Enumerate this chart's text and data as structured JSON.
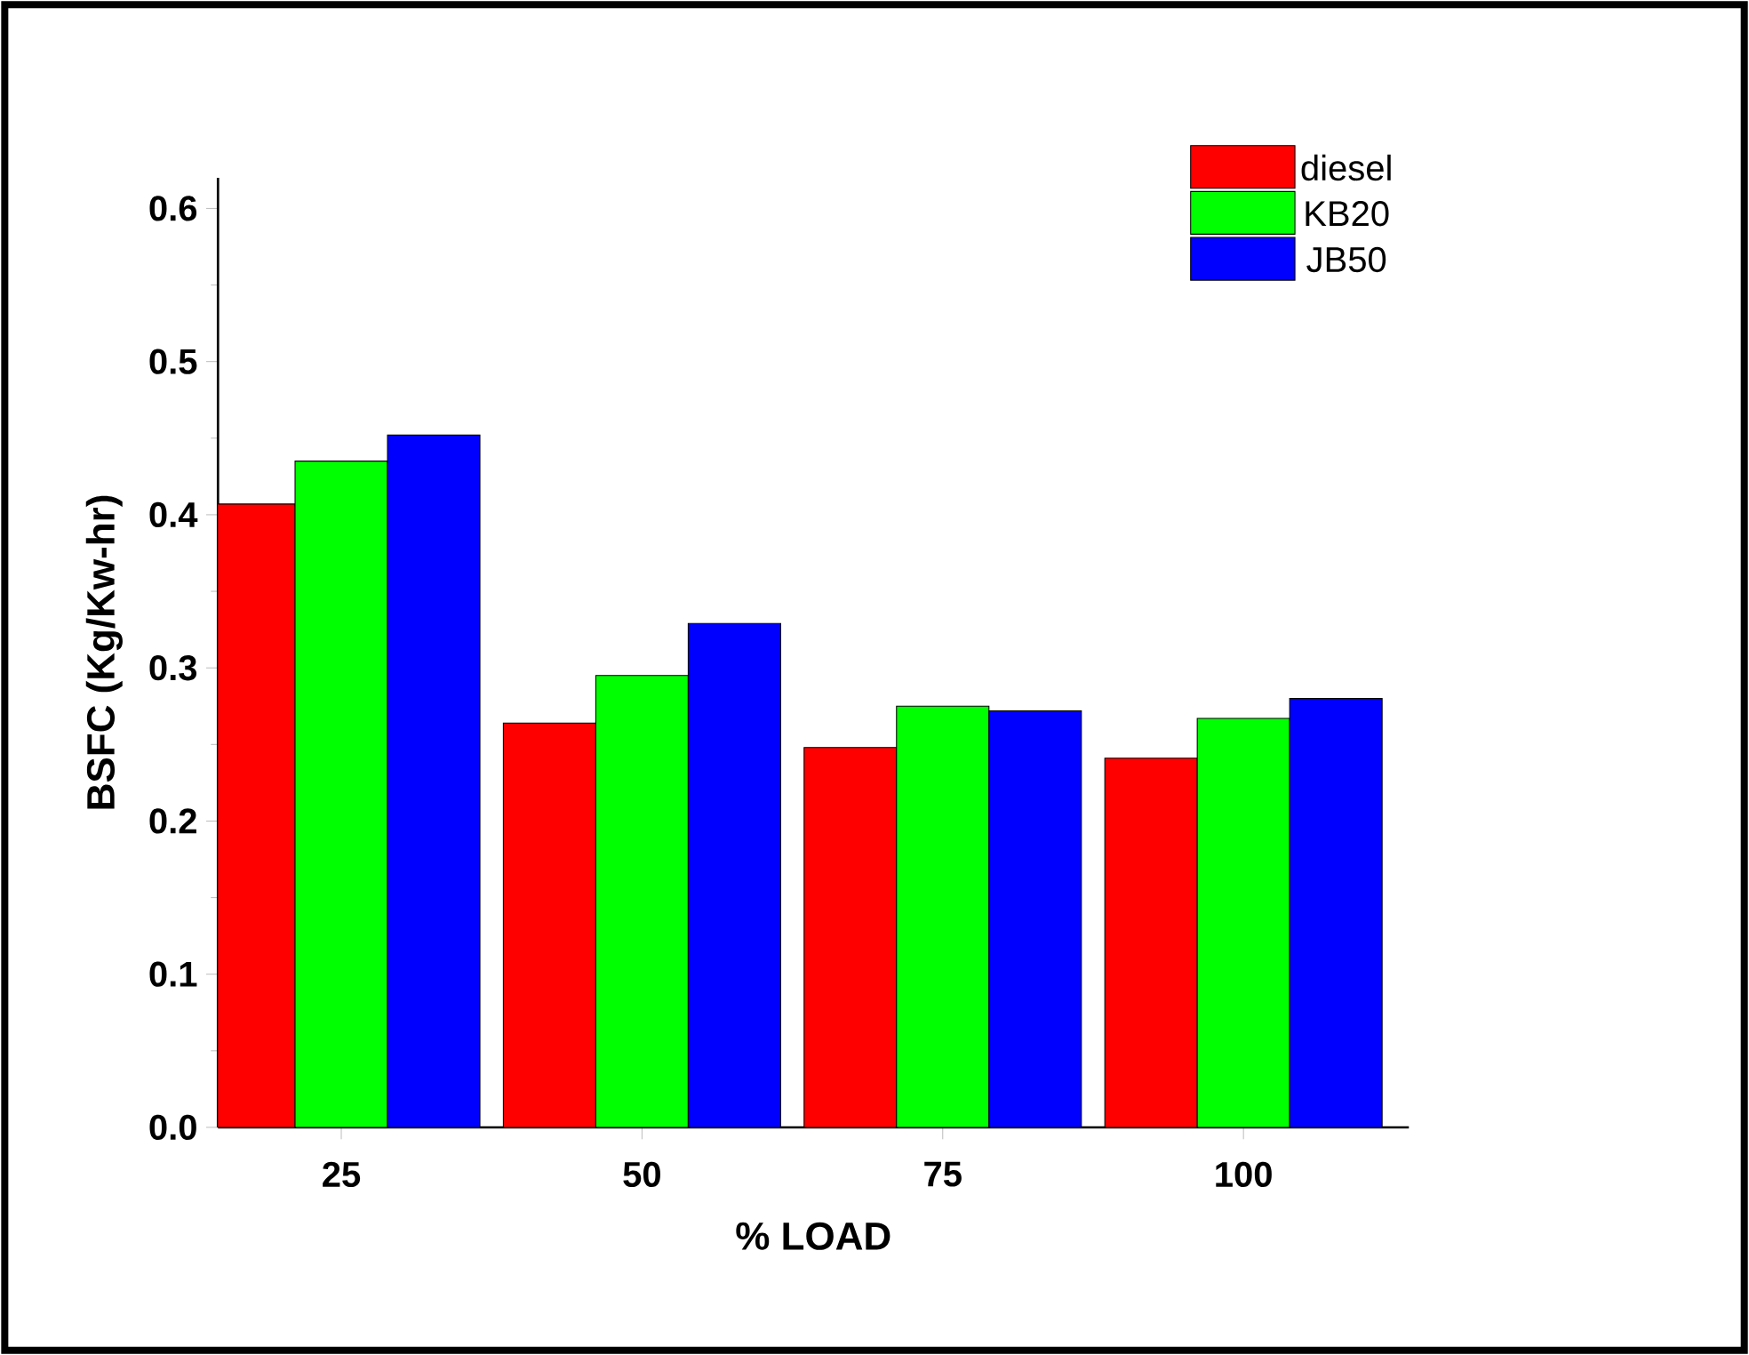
{
  "chart_data": {
    "type": "bar",
    "xlabel": "% LOAD",
    "ylabel": "BSFC (Kg/Kw-hr)",
    "categories": [
      "25",
      "50",
      "75",
      "100"
    ],
    "series": [
      {
        "name": "diesel",
        "color": "#ff0000",
        "values": [
          0.407,
          0.264,
          0.248,
          0.241
        ]
      },
      {
        "name": "KB20",
        "color": "#00ff00",
        "values": [
          0.435,
          0.295,
          0.275,
          0.267
        ]
      },
      {
        "name": "JB50",
        "color": "#0000ff",
        "values": [
          0.452,
          0.329,
          0.272,
          0.28
        ]
      }
    ],
    "ylim": [
      0,
      0.62
    ],
    "yticks": [
      {
        "value": 0,
        "label": "0.0"
      },
      0.1,
      0.2,
      0.3,
      0.4,
      0.5,
      0.6
    ],
    "legend": "top right"
  }
}
